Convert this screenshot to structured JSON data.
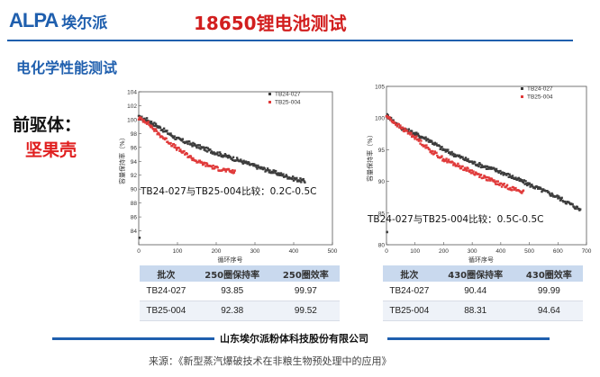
{
  "header": {
    "logo_latin": "ALPA",
    "logo_cn": "埃尔派",
    "title": "18650锂电池测试"
  },
  "section_title": "电化学性能测试",
  "precursor": {
    "label": "前驱体：",
    "value": "坚果壳"
  },
  "colors": {
    "accent_blue": "#1f5fae",
    "title_red": "#d21e1e",
    "series_black": "#3c3c3c",
    "series_red": "#e03a3a",
    "table_header": "#c9d9ee"
  },
  "chart_data": [
    {
      "type": "line",
      "ylabel": "容量保持率（%）",
      "xlabel": "循环序号",
      "annotation": "TB24-027与TB25-004比较：0.2C-0.5C",
      "xlim": [
        0,
        500
      ],
      "ylim": [
        82,
        104
      ],
      "x_ticks": [
        "0",
        "100",
        "200",
        "300",
        "400",
        "500"
      ],
      "y_ticks": [
        "84",
        "86",
        "88",
        "90",
        "92",
        "94",
        "96",
        "98",
        "100",
        "102",
        "104"
      ],
      "legend": [
        "TB24-027",
        "TB25-004"
      ],
      "series": [
        {
          "name": "TB24-027",
          "color": "#3c3c3c",
          "points": [
            [
              0,
              100.3
            ],
            [
              20,
              100
            ],
            [
              50,
              99
            ],
            [
              100,
              97.2
            ],
            [
              150,
              96.2
            ],
            [
              200,
              95.2
            ],
            [
              250,
              94.3
            ],
            [
              300,
              93.3
            ],
            [
              350,
              92.4
            ],
            [
              400,
              91.5
            ],
            [
              430,
              91.1
            ]
          ],
          "outlier": [
            2,
            83
          ]
        },
        {
          "name": "TB25-004",
          "color": "#e03a3a",
          "points": [
            [
              0,
              100.2
            ],
            [
              20,
              99.7
            ],
            [
              50,
              98
            ],
            [
              100,
              95.8
            ],
            [
              150,
              94
            ],
            [
              200,
              93
            ],
            [
              250,
              92.4
            ]
          ]
        }
      ]
    },
    {
      "type": "line",
      "ylabel": "容量保持率（%）",
      "xlabel": "循环序号",
      "annotation": "TB24-027与TB25-004比较：0.5C-0.5C",
      "xlim": [
        0,
        700
      ],
      "ylim": [
        80,
        105
      ],
      "x_ticks": [
        "0",
        "100",
        "200",
        "300",
        "400",
        "500",
        "600",
        "700"
      ],
      "y_ticks": [
        "80",
        "85",
        "90",
        "95",
        "100",
        "105"
      ],
      "legend": [
        "TB24-027",
        "TB25-004"
      ],
      "series": [
        {
          "name": "TB24-027",
          "color": "#3c3c3c",
          "points": [
            [
              0,
              100.5
            ],
            [
              50,
              98.5
            ],
            [
              100,
              97.5
            ],
            [
              150,
              96.5
            ],
            [
              200,
              95
            ],
            [
              250,
              94
            ],
            [
              300,
              93
            ],
            [
              400,
              91.5
            ],
            [
              500,
              89.5
            ],
            [
              600,
              87.5
            ],
            [
              660,
              86
            ],
            [
              680,
              85.5
            ]
          ],
          "outlier": [
            2,
            82
          ]
        },
        {
          "name": "TB25-004",
          "color": "#e03a3a",
          "points": [
            [
              0,
              100.3
            ],
            [
              50,
              98.5
            ],
            [
              100,
              97
            ],
            [
              150,
              95
            ],
            [
              200,
              93.5
            ],
            [
              300,
              91.5
            ],
            [
              400,
              89.5
            ],
            [
              480,
              88.3
            ]
          ]
        }
      ]
    }
  ],
  "tables": [
    {
      "headers": [
        "批次",
        "250圈保持率",
        "250圈效率"
      ],
      "rows": [
        [
          "TB24-027",
          "93.85",
          "99.97"
        ],
        [
          "TB25-004",
          "92.38",
          "99.52"
        ]
      ]
    },
    {
      "headers": [
        "批次",
        "430圈保持率",
        "430圈效率"
      ],
      "rows": [
        [
          "TB24-027",
          "90.44",
          "99.99"
        ],
        [
          "TB25-004",
          "88.31",
          "94.64"
        ]
      ]
    }
  ],
  "footer": {
    "company": "山东埃尔派粉体科技股份有限公司",
    "source": "来源：《新型蒸汽爆破技术在非粮生物预处理中的应用》"
  }
}
